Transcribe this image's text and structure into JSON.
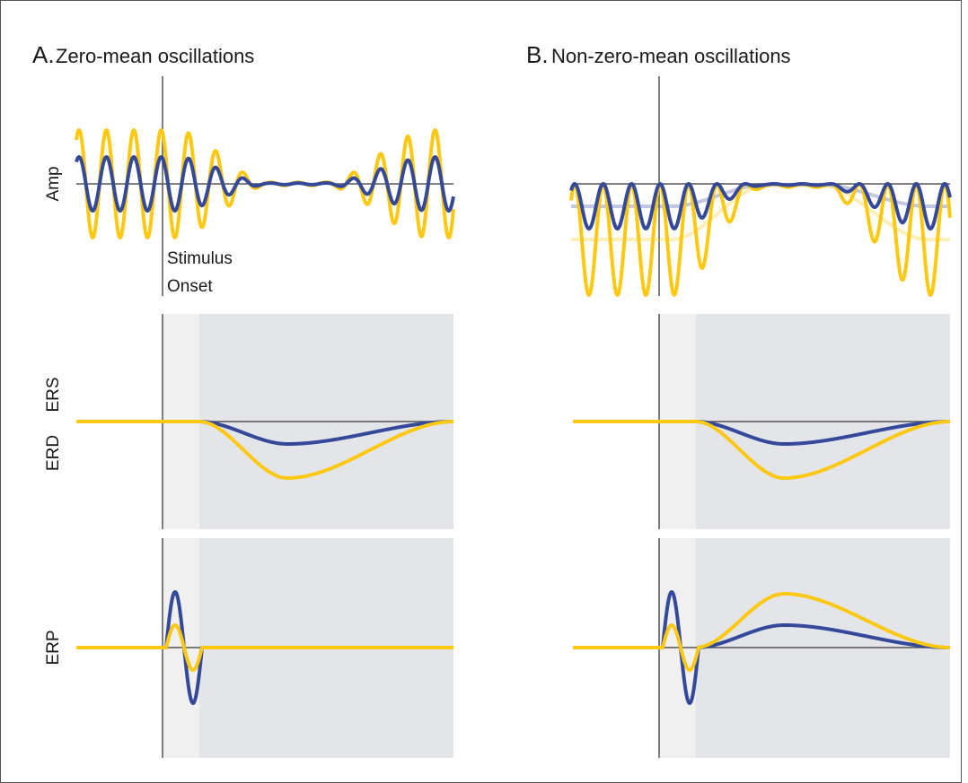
{
  "panels": [
    {
      "letter": "A.",
      "title": "Zero-mean oscillations"
    },
    {
      "letter": "B.",
      "title": "Non-zero-mean oscillations"
    }
  ],
  "row_labels": {
    "amp": "Amp",
    "ers": "ERS",
    "erd": "ERD",
    "erp": "ERP"
  },
  "stimulus": [
    "Stimulus",
    "Onset"
  ]
}
